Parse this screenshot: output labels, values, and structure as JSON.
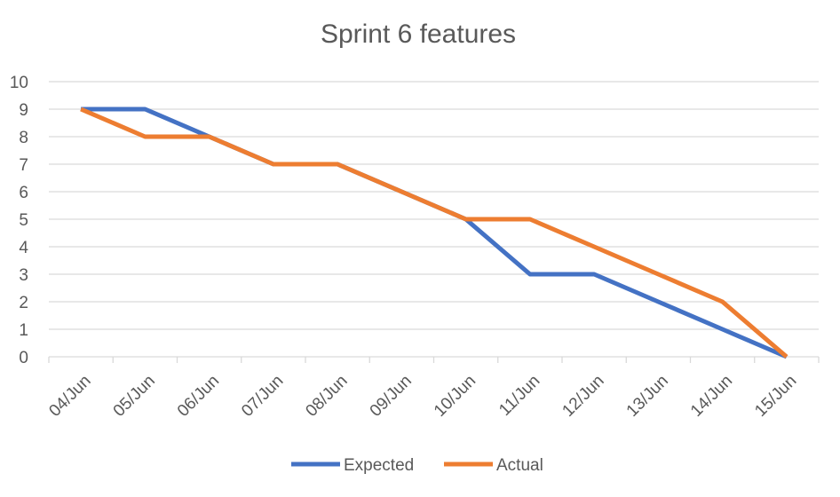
{
  "chart_data": {
    "type": "line",
    "title": "Sprint 6 features",
    "xlabel": "",
    "ylabel": "",
    "categories": [
      "04/Jun",
      "05/Jun",
      "06/Jun",
      "07/Jun",
      "08/Jun",
      "09/Jun",
      "10/Jun",
      "11/Jun",
      "12/Jun",
      "13/Jun",
      "14/Jun",
      "15/Jun"
    ],
    "ylim": [
      0,
      10
    ],
    "yticks": [
      0,
      1,
      2,
      3,
      4,
      5,
      6,
      7,
      8,
      9,
      10
    ],
    "grid": true,
    "legend": "bottom",
    "series": [
      {
        "name": "Expected",
        "color": "#4472C4",
        "values": [
          9,
          9,
          8,
          7,
          7,
          6,
          5,
          3,
          3,
          2,
          1,
          0
        ]
      },
      {
        "name": "Actual",
        "color": "#ED7D31",
        "values": [
          9,
          8,
          8,
          7,
          7,
          6,
          5,
          5,
          4,
          3,
          2,
          0
        ]
      }
    ]
  }
}
